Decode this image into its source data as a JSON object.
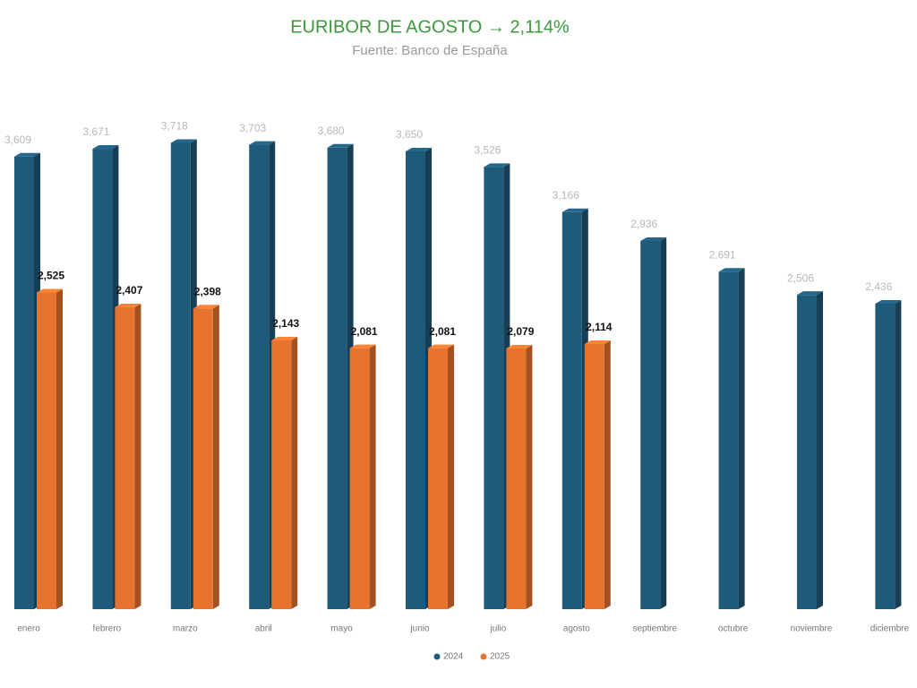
{
  "chart_data": {
    "type": "bar3d",
    "title": "EURIBOR DE AGOSTO → 2,114%",
    "subtitle": "Fuente: Banco de España",
    "categories": [
      "enero",
      "febrero",
      "marzo",
      "abril",
      "mayo",
      "junio",
      "julio",
      "agosto",
      "septiembre",
      "octubre",
      "noviembre",
      "diciembre"
    ],
    "series": [
      {
        "name": "2024",
        "color": "#1f5a7a",
        "values": [
          3.609,
          3.671,
          3.718,
          3.703,
          3.68,
          3.65,
          3.526,
          3.166,
          2.936,
          2.691,
          2.506,
          2.436
        ],
        "value_labels": [
          "3,609",
          "3,671",
          "3,718",
          "3,703",
          "3,680",
          "3,650",
          "3,526",
          "3,166",
          "2,936",
          "2,691",
          "2,506",
          "2,436"
        ]
      },
      {
        "name": "2025",
        "color": "#e8732f",
        "values": [
          2.525,
          2.407,
          2.398,
          2.143,
          2.081,
          2.081,
          2.079,
          2.114,
          null,
          null,
          null,
          null
        ],
        "value_labels": [
          "2,525",
          "2,407",
          "2,398",
          "2,143",
          "2,081",
          "2,081",
          "2,079",
          "2,114",
          null,
          null,
          null,
          null
        ]
      }
    ],
    "ylim": [
      0,
      4
    ],
    "legend": "bottom"
  }
}
